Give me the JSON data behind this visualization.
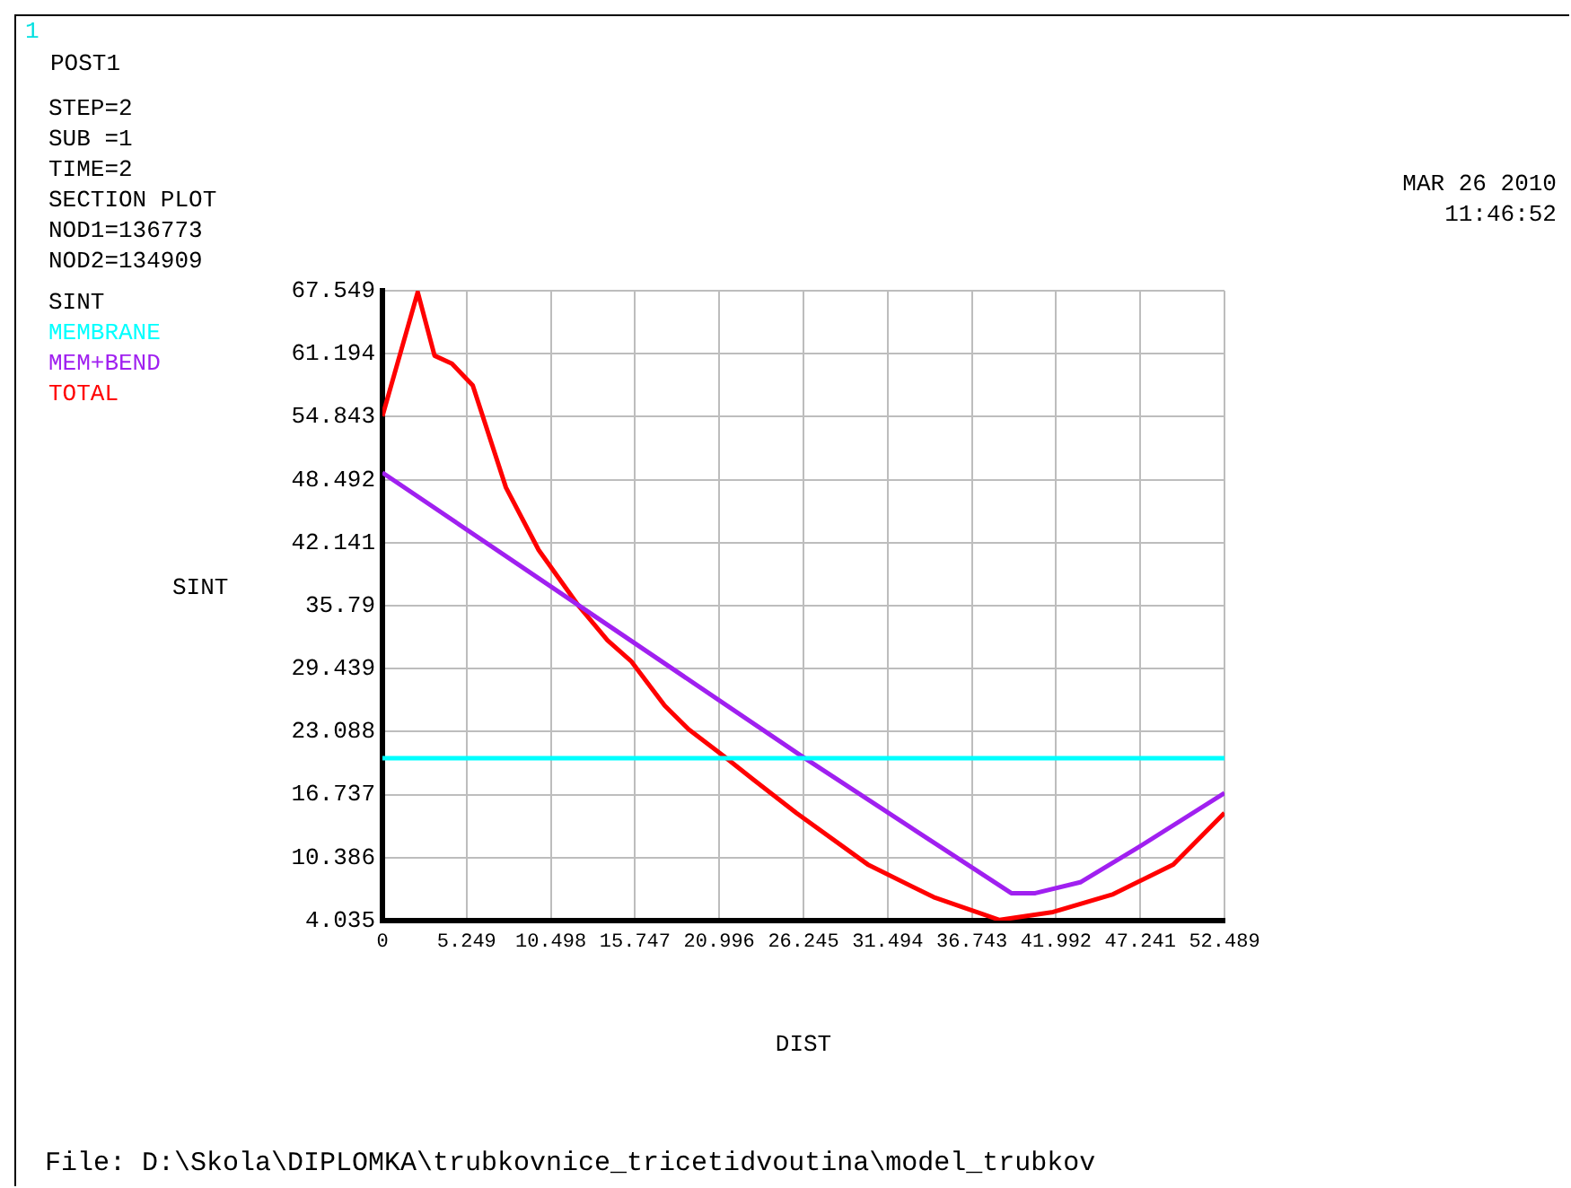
{
  "chart_data": {
    "type": "line",
    "xlabel": "DIST",
    "ylabel": "SINT",
    "legend_title": "SINT",
    "legend": "top left",
    "grid": true,
    "marker": "none",
    "line_style": "solid",
    "xlim": [
      0,
      52.489
    ],
    "xticks": [
      0,
      5.249,
      10.498,
      15.747,
      20.996,
      26.245,
      31.494,
      36.743,
      41.992,
      47.241,
      52.489
    ],
    "ylim": [
      4.035,
      67.549
    ],
    "yticks": [
      4.035,
      10.386,
      16.737,
      23.088,
      29.439,
      35.79,
      42.141,
      48.492,
      54.843,
      61.194,
      67.549
    ],
    "series": [
      {
        "name": "MEMBRANE",
        "color": "#00ffff",
        "x": [
          0,
          52.489
        ],
        "values": [
          20.4,
          20.4
        ]
      },
      {
        "name": "MEM+BEND",
        "color": "#a020f0",
        "x": [
          0,
          12.17,
          26.15,
          39.2,
          40.7,
          43.5,
          47.0,
          52.489
        ],
        "values": [
          49.2,
          35.9,
          20.6,
          6.8,
          6.8,
          7.9,
          11.3,
          16.9
        ]
      },
      {
        "name": "TOTAL",
        "color": "#ff0000",
        "x": [
          0,
          2.2,
          3.25,
          4.33,
          5.63,
          7.7,
          9.74,
          12.17,
          14.03,
          15.5,
          17.6,
          19.1,
          21.3,
          23.17,
          25.8,
          30.25,
          34.36,
          38.47,
          41.8,
          45.55,
          49.3,
          52.489
        ],
        "values": [
          54.9,
          67.4,
          61.0,
          60.2,
          58.0,
          47.7,
          41.4,
          35.9,
          32.3,
          30.2,
          25.7,
          23.3,
          20.6,
          18.2,
          14.9,
          9.7,
          6.4,
          4.1,
          4.9,
          6.7,
          9.7,
          14.9
        ]
      }
    ],
    "annotations": [
      "1",
      "POST1",
      "STEP=2",
      "SUB =1",
      "TIME=2",
      "SECTION PLOT",
      "NOD1=136773",
      "NOD2=134909",
      "MAR 26 2010",
      "11:46:52",
      "File: D:\\Skola\\DIPLOMKA\\trubkovnice_tricetidvoutina\\model_trubkov"
    ]
  }
}
